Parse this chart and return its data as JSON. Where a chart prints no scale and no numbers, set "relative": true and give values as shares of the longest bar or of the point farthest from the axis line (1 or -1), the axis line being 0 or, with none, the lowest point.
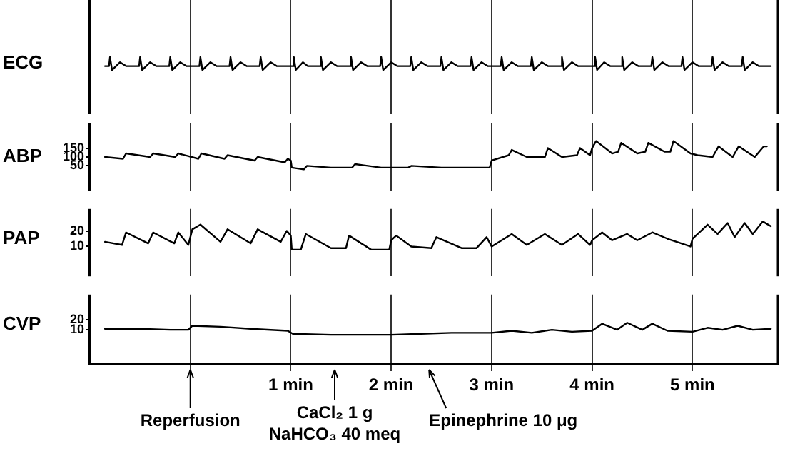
{
  "chart_data": [
    {
      "type": "line",
      "ylabel": "ECG",
      "relative": true,
      "color": "#000000",
      "grid": "x",
      "tick_labels": false,
      "xlim": [
        -1,
        5.85
      ],
      "xticks": [
        {
          "value": 0,
          "label": null
        },
        {
          "value": 1,
          "label": null
        },
        {
          "value": 2,
          "label": null
        },
        {
          "value": 3,
          "label": null
        },
        {
          "value": 4,
          "label": null
        },
        {
          "value": 5,
          "label": null
        }
      ],
      "x": [
        -0.85,
        -0.81,
        -0.8,
        -0.78,
        -0.7,
        -0.64,
        -0.51,
        -0.5,
        -0.48,
        -0.4,
        -0.34,
        -0.21,
        -0.2,
        -0.18,
        -0.1,
        -0.04,
        0.09,
        0.1,
        0.12,
        0.2,
        0.26,
        0.39,
        0.4,
        0.42,
        0.5,
        0.56,
        0.69,
        0.7,
        0.72,
        0.8,
        0.86,
        1.02,
        1.03,
        1.05,
        1.12,
        1.17,
        1.29,
        1.3,
        1.32,
        1.4,
        1.46,
        1.59,
        1.6,
        1.62,
        1.7,
        1.76,
        1.89,
        1.9,
        1.92,
        2.0,
        2.06,
        2.19,
        2.2,
        2.22,
        2.3,
        2.36,
        2.49,
        2.5,
        2.52,
        2.6,
        2.66,
        2.79,
        2.8,
        2.82,
        2.9,
        2.96,
        3.09,
        3.1,
        3.12,
        3.2,
        3.26,
        3.39,
        3.4,
        3.42,
        3.5,
        3.56,
        3.69,
        3.7,
        3.72,
        3.8,
        3.86,
        4.02,
        4.03,
        4.05,
        4.12,
        4.18,
        4.29,
        4.3,
        4.32,
        4.4,
        4.46,
        4.59,
        4.6,
        4.62,
        4.7,
        4.76,
        4.89,
        4.9,
        4.92,
        5.0,
        5.06,
        5.19,
        5.2,
        5.22,
        5.3,
        5.36,
        5.49,
        5.5,
        5.52,
        5.6,
        5.66,
        5.78
      ],
      "values": [
        0.3,
        0.3,
        1,
        0,
        0.6,
        0.3,
        0.3,
        1,
        0,
        0.6,
        0.3,
        0.3,
        1,
        0,
        0.6,
        0.3,
        0.3,
        1,
        0,
        0.6,
        0.3,
        0.3,
        1,
        0,
        0.6,
        0.3,
        0.3,
        1,
        0,
        0.6,
        0.3,
        0.3,
        1,
        0,
        0.6,
        0.3,
        0.3,
        1,
        0,
        0.6,
        0.3,
        0.3,
        1,
        0,
        0.6,
        0.3,
        0.3,
        1,
        0,
        0.6,
        0.3,
        0.3,
        1,
        0,
        0.6,
        0.3,
        0.3,
        1,
        0,
        0.6,
        0.3,
        0.3,
        1,
        0,
        0.6,
        0.3,
        0.3,
        1,
        0,
        0.6,
        0.3,
        0.3,
        1,
        0,
        0.6,
        0.3,
        0.3,
        1,
        0,
        0.6,
        0.3,
        0.3,
        1,
        0,
        0.6,
        0.3,
        0.3,
        1,
        0,
        0.6,
        0.3,
        0.3,
        1,
        0,
        0.6,
        0.3,
        0.3,
        1,
        0,
        0.6,
        0.3,
        0.3,
        1,
        0,
        0.6,
        0.3,
        0.3,
        1,
        0,
        0.6,
        0.3,
        0.3
      ]
    },
    {
      "type": "line",
      "ylabel": "ABP",
      "color": "#000000",
      "grid": "x",
      "tick_labels": "y",
      "ylim": [
        -90,
        290
      ],
      "yticks": [
        150,
        100,
        50
      ],
      "xlim": [
        -1,
        5.85
      ],
      "xticks": [
        {
          "value": 0,
          "label": null
        },
        {
          "value": 1,
          "label": null
        },
        {
          "value": 2,
          "label": null
        },
        {
          "value": 3,
          "label": null
        },
        {
          "value": 4,
          "label": null
        },
        {
          "value": 5,
          "label": null
        }
      ],
      "x": [
        -0.85,
        -0.67,
        -0.64,
        -0.4,
        -0.37,
        -0.15,
        -0.12,
        0.08,
        0.11,
        0.34,
        0.37,
        0.64,
        0.67,
        0.94,
        0.97,
        1.0,
        1.01,
        1.13,
        1.16,
        1.4,
        1.61,
        1.64,
        1.9,
        2.17,
        2.2,
        2.5,
        2.8,
        2.98,
        3.0,
        3.17,
        3.2,
        3.35,
        3.53,
        3.56,
        3.7,
        3.85,
        3.88,
        3.98,
        4.0,
        4.04,
        4.2,
        4.26,
        4.29,
        4.45,
        4.53,
        4.56,
        4.72,
        4.78,
        4.81,
        4.98,
        5.05,
        5.2,
        5.26,
        5.4,
        5.46,
        5.62,
        5.71,
        5.74
      ],
      "values": [
        100,
        90,
        120,
        100,
        120,
        100,
        120,
        90,
        120,
        90,
        110,
        80,
        100,
        70,
        90,
        80,
        40,
        30,
        50,
        40,
        40,
        60,
        40,
        40,
        50,
        40,
        40,
        40,
        80,
        110,
        140,
        100,
        100,
        150,
        100,
        110,
        150,
        110,
        150,
        190,
        120,
        130,
        180,
        120,
        130,
        180,
        130,
        130,
        190,
        120,
        110,
        100,
        160,
        100,
        160,
        100,
        160,
        160
      ]
    },
    {
      "type": "line",
      "ylabel": "PAP",
      "color": "#000000",
      "grid": "x",
      "tick_labels": "y",
      "ylim": [
        -9,
        34
      ],
      "yticks": [
        20,
        10
      ],
      "xlim": [
        -1,
        5.85
      ],
      "xticks": [
        {
          "value": 0,
          "label": null
        },
        {
          "value": 1,
          "label": null
        },
        {
          "value": 2,
          "label": null
        },
        {
          "value": 3,
          "label": null
        },
        {
          "value": 4,
          "label": null
        },
        {
          "value": 5,
          "label": null
        }
      ],
      "x": [
        -0.85,
        -0.68,
        -0.64,
        -0.42,
        -0.37,
        -0.16,
        -0.12,
        -0.02,
        0.02,
        0.1,
        0.3,
        0.37,
        0.6,
        0.67,
        0.9,
        0.96,
        1.0,
        1.01,
        1.1,
        1.15,
        1.4,
        1.55,
        1.58,
        1.8,
        1.98,
        2.0,
        2.05,
        2.2,
        2.4,
        2.45,
        2.7,
        2.85,
        2.95,
        3.0,
        3.2,
        3.35,
        3.53,
        3.7,
        3.86,
        3.98,
        4.0,
        4.1,
        4.2,
        4.35,
        4.45,
        4.6,
        4.75,
        4.98,
        5.0,
        5.15,
        5.25,
        5.35,
        5.42,
        5.52,
        5.6,
        5.7,
        5.78
      ],
      "values": [
        13,
        11,
        19,
        12,
        19,
        12,
        19,
        11,
        21,
        24,
        13,
        21,
        12,
        21,
        13,
        20,
        17,
        8,
        8,
        18,
        9,
        9,
        17,
        8,
        8,
        14,
        17,
        10,
        9,
        16,
        9,
        9,
        16,
        10,
        18,
        11,
        18,
        11,
        18,
        11,
        14,
        19,
        14,
        18,
        14,
        19,
        15,
        10,
        15,
        24,
        18,
        25,
        16,
        25,
        18,
        26,
        23
      ]
    },
    {
      "type": "line",
      "ylabel": "CVP",
      "color": "#000000",
      "grid": "x",
      "ylim": [
        -24,
        45
      ],
      "yticks": [
        20,
        10
      ],
      "xlim": [
        -1,
        5.85
      ],
      "xticks": [
        {
          "value": 0,
          "label": null
        },
        {
          "value": 1,
          "label": "1 min"
        },
        {
          "value": 2,
          "label": "2 min"
        },
        {
          "value": 3,
          "label": "3 min"
        },
        {
          "value": 4,
          "label": "4 min"
        },
        {
          "value": 5,
          "label": "5 min"
        }
      ],
      "x": [
        -0.85,
        -0.5,
        -0.2,
        -0.02,
        0.02,
        0.3,
        0.6,
        0.97,
        1.02,
        1.4,
        1.8,
        2.0,
        2.3,
        2.6,
        3.0,
        3.2,
        3.4,
        3.6,
        3.8,
        4.0,
        4.1,
        4.25,
        4.35,
        4.5,
        4.6,
        4.75,
        5.0,
        5.15,
        5.3,
        5.45,
        5.6,
        5.78
      ],
      "values": [
        11,
        11,
        10,
        10,
        14,
        13,
        11,
        9,
        6,
        5,
        5,
        5,
        6,
        7,
        7,
        9,
        7,
        10,
        8,
        9,
        16,
        10,
        17,
        10,
        16,
        9,
        8,
        12,
        10,
        14,
        10,
        11
      ],
      "annotations": [
        {
          "text": "Reperfusion",
          "x": 0
        },
        "CaCl₂ 1 g\nNaHCO₃ 40 meq",
        "Epinephrine 10 μg"
      ]
    }
  ]
}
